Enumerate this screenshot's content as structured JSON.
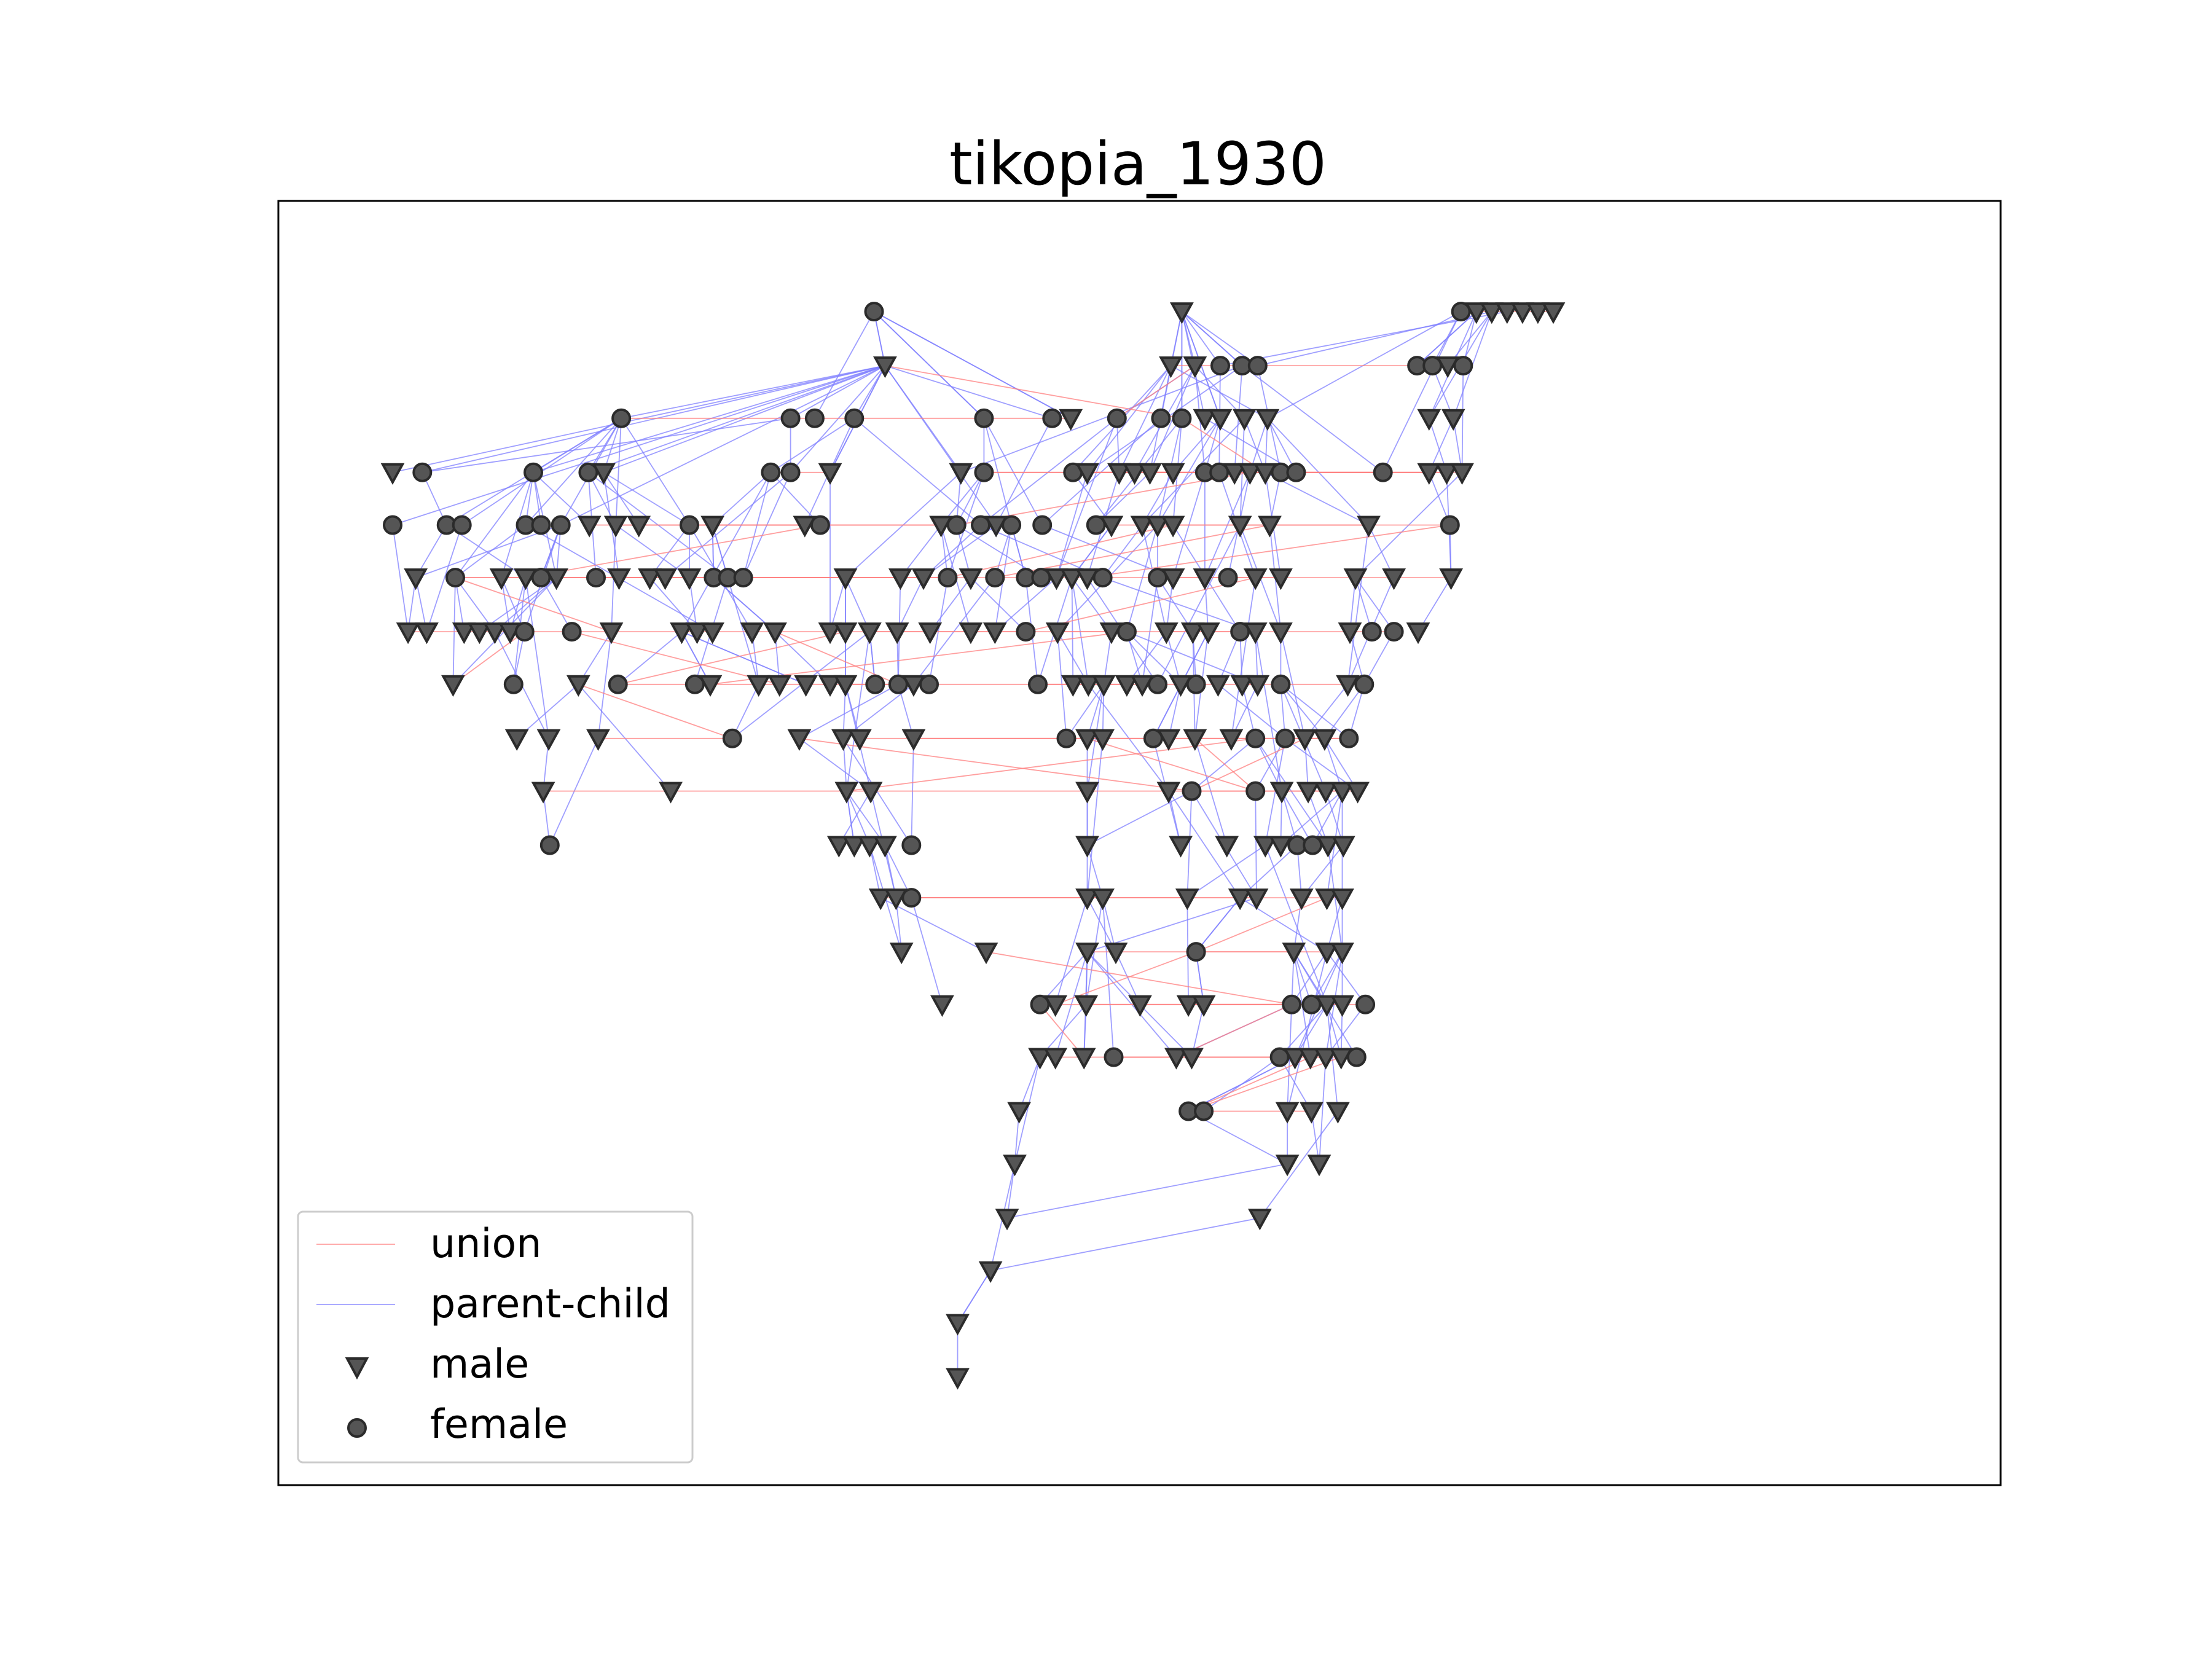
{
  "title": "tikopia_1930",
  "legend": {
    "union": "union",
    "parent_child": "parent-child",
    "male": "male",
    "female": "female"
  },
  "colors": {
    "union_edge": "#ff7f7f",
    "parent_child_edge": "#7f7fff",
    "node_fill": "#555555",
    "node_stroke": "#2b2b2b",
    "frame": "#000000"
  },
  "node_shapes": {
    "male": "triangle-down-icon",
    "female": "circle-icon"
  }
}
